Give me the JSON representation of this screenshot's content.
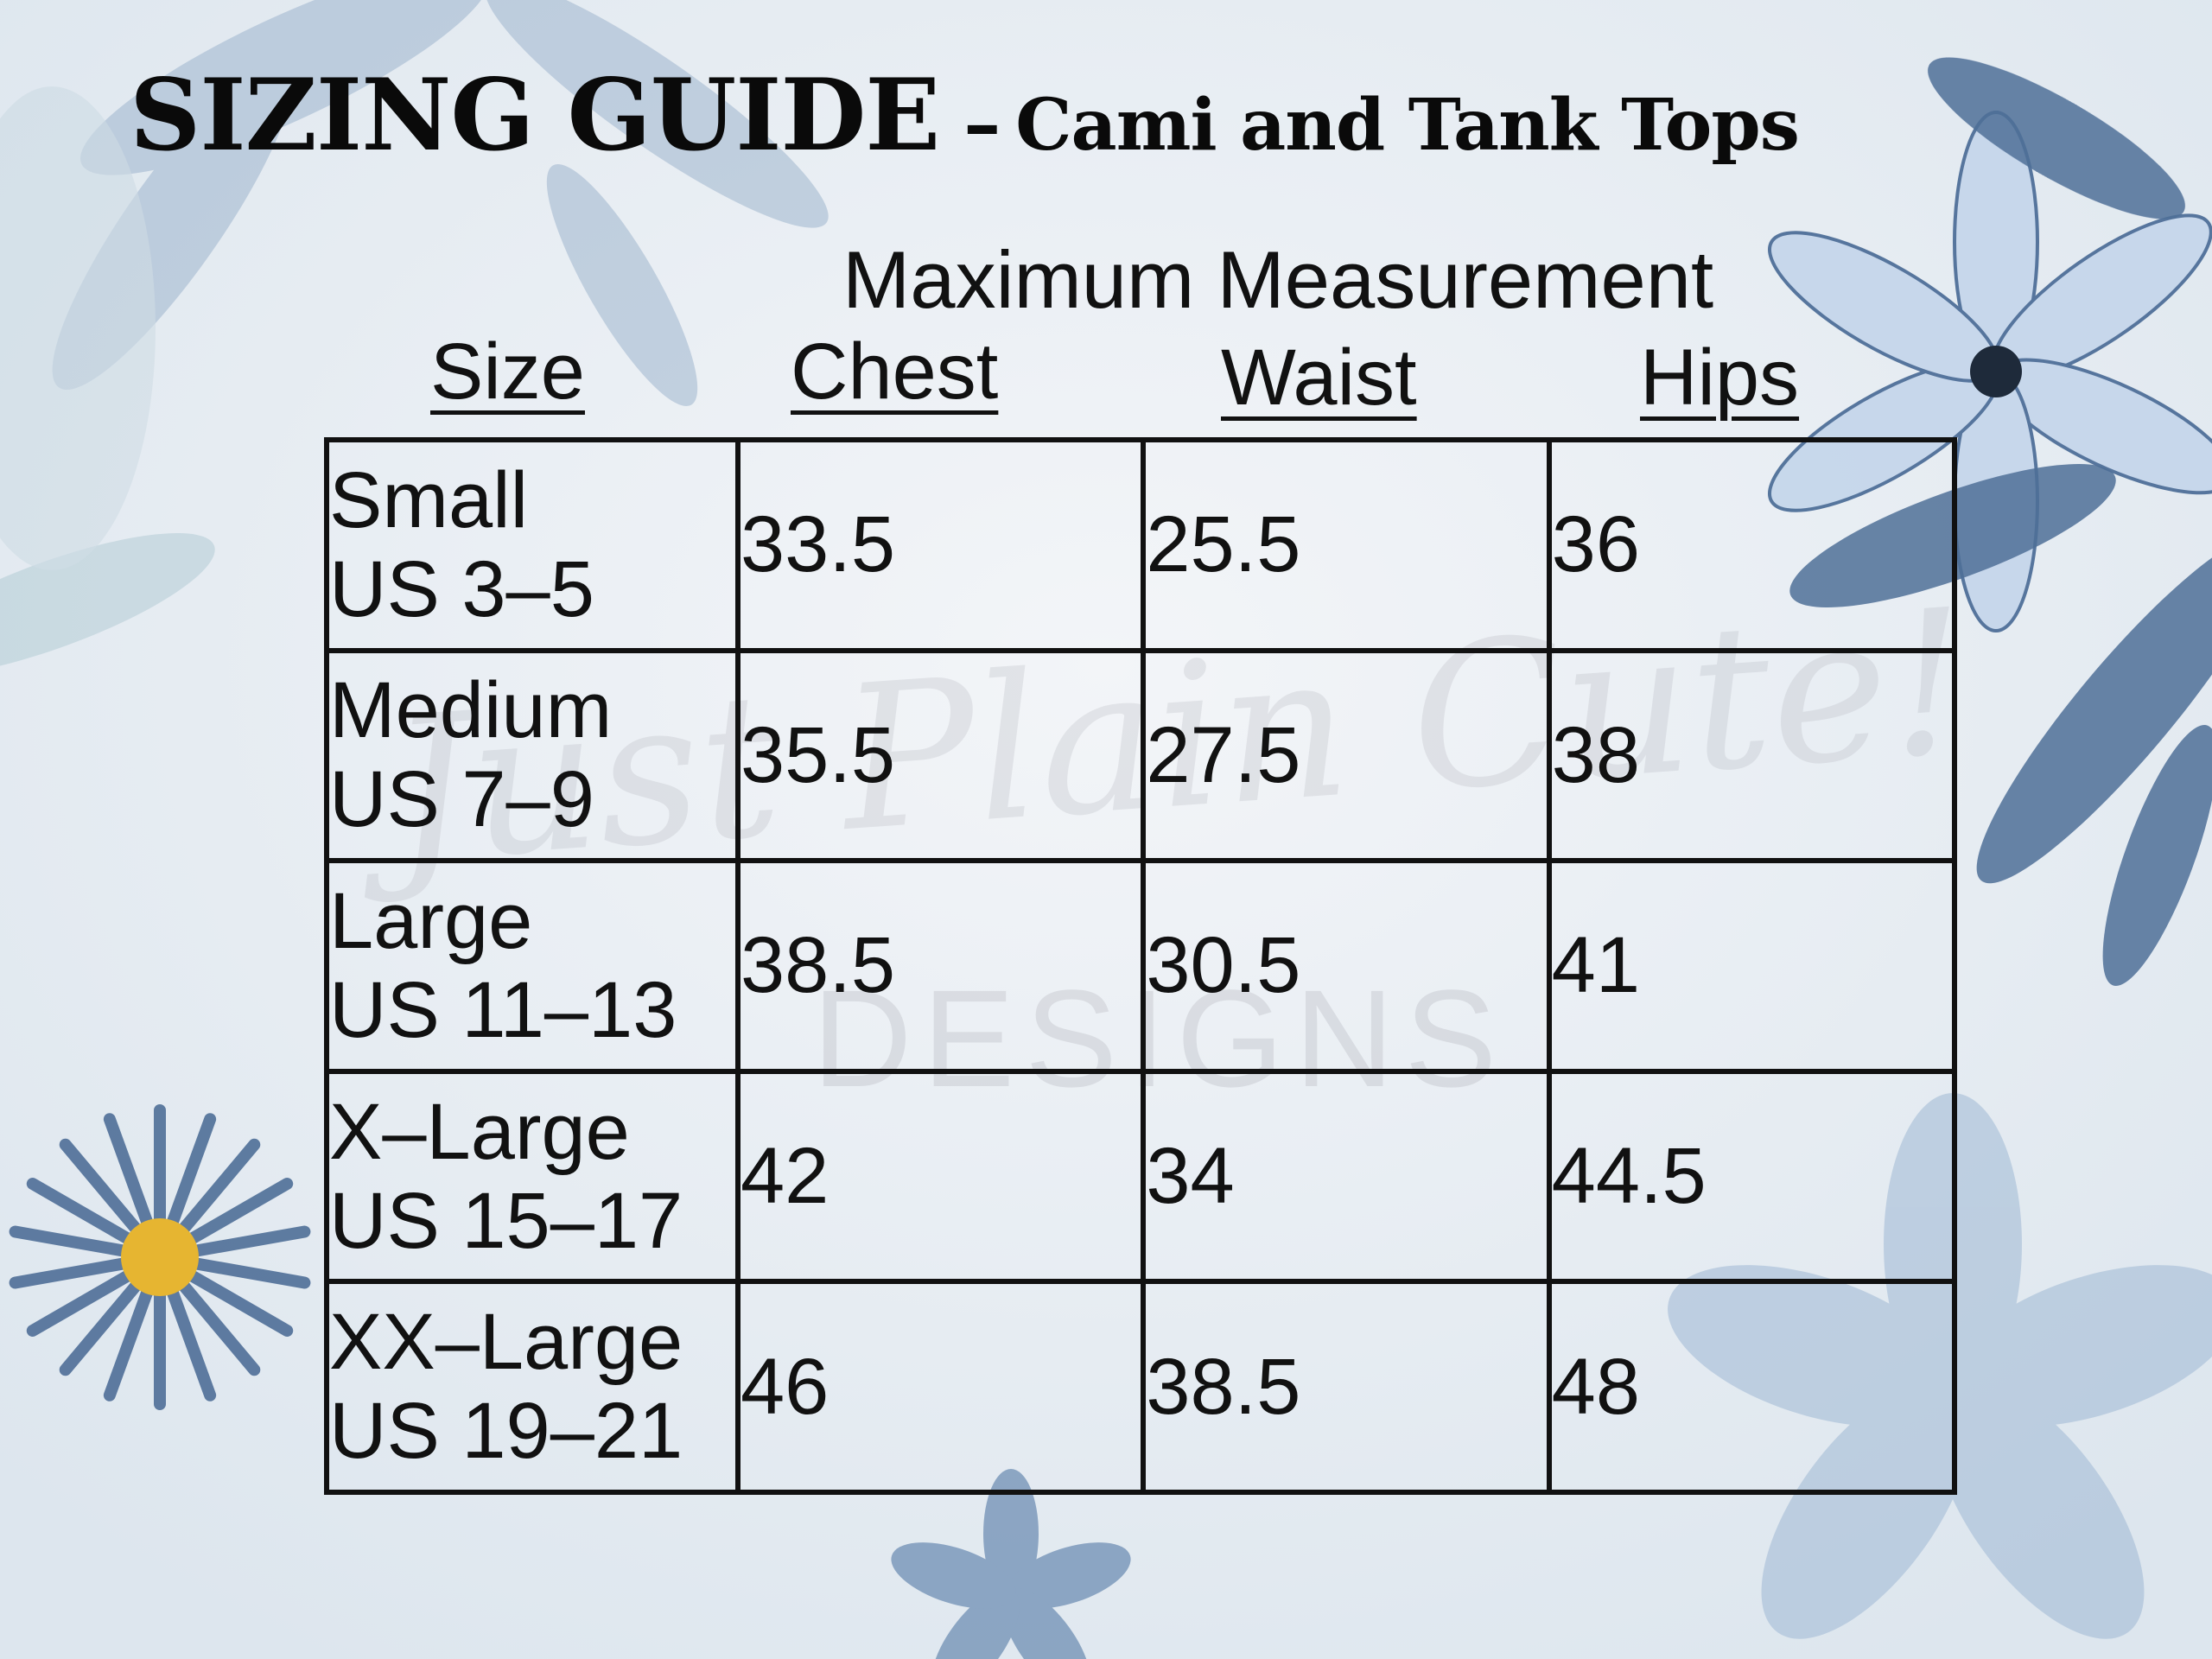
{
  "title": {
    "main": "SIZING GUIDE",
    "dash": "–",
    "sub": "Cami and Tank Tops"
  },
  "header": {
    "measurement": "Maximum Measurement"
  },
  "columns": {
    "size": "Size",
    "chest": "Chest",
    "waist": "Waist",
    "hips": "Hips"
  },
  "rows": [
    {
      "size": "Small",
      "us": "US 3–5",
      "chest": "33.5",
      "waist": "25.5",
      "hips": "36"
    },
    {
      "size": "Medium",
      "us": "US 7–9",
      "chest": "35.5",
      "waist": "27.5",
      "hips": "38"
    },
    {
      "size": "Large",
      "us": "US 11–13",
      "chest": "38.5",
      "waist": "30.5",
      "hips": "41"
    },
    {
      "size": "X–Large",
      "us": "US 15–17",
      "chest": "42",
      "waist": "34",
      "hips": "44.5"
    },
    {
      "size": "XX–Large",
      "us": "US 19–21",
      "chest": "46",
      "waist": "38.5",
      "hips": "48"
    }
  ],
  "watermark": {
    "script": "Just Plain Cute!",
    "block": "DESIGNS"
  },
  "colors": {
    "flower_blue": "#4f6f98",
    "flower_center": "#e6b531",
    "paper": "#eef2f6"
  },
  "icons": [
    "watercolor-leaf-icon",
    "watercolor-flower-icon",
    "daisy-icon"
  ]
}
